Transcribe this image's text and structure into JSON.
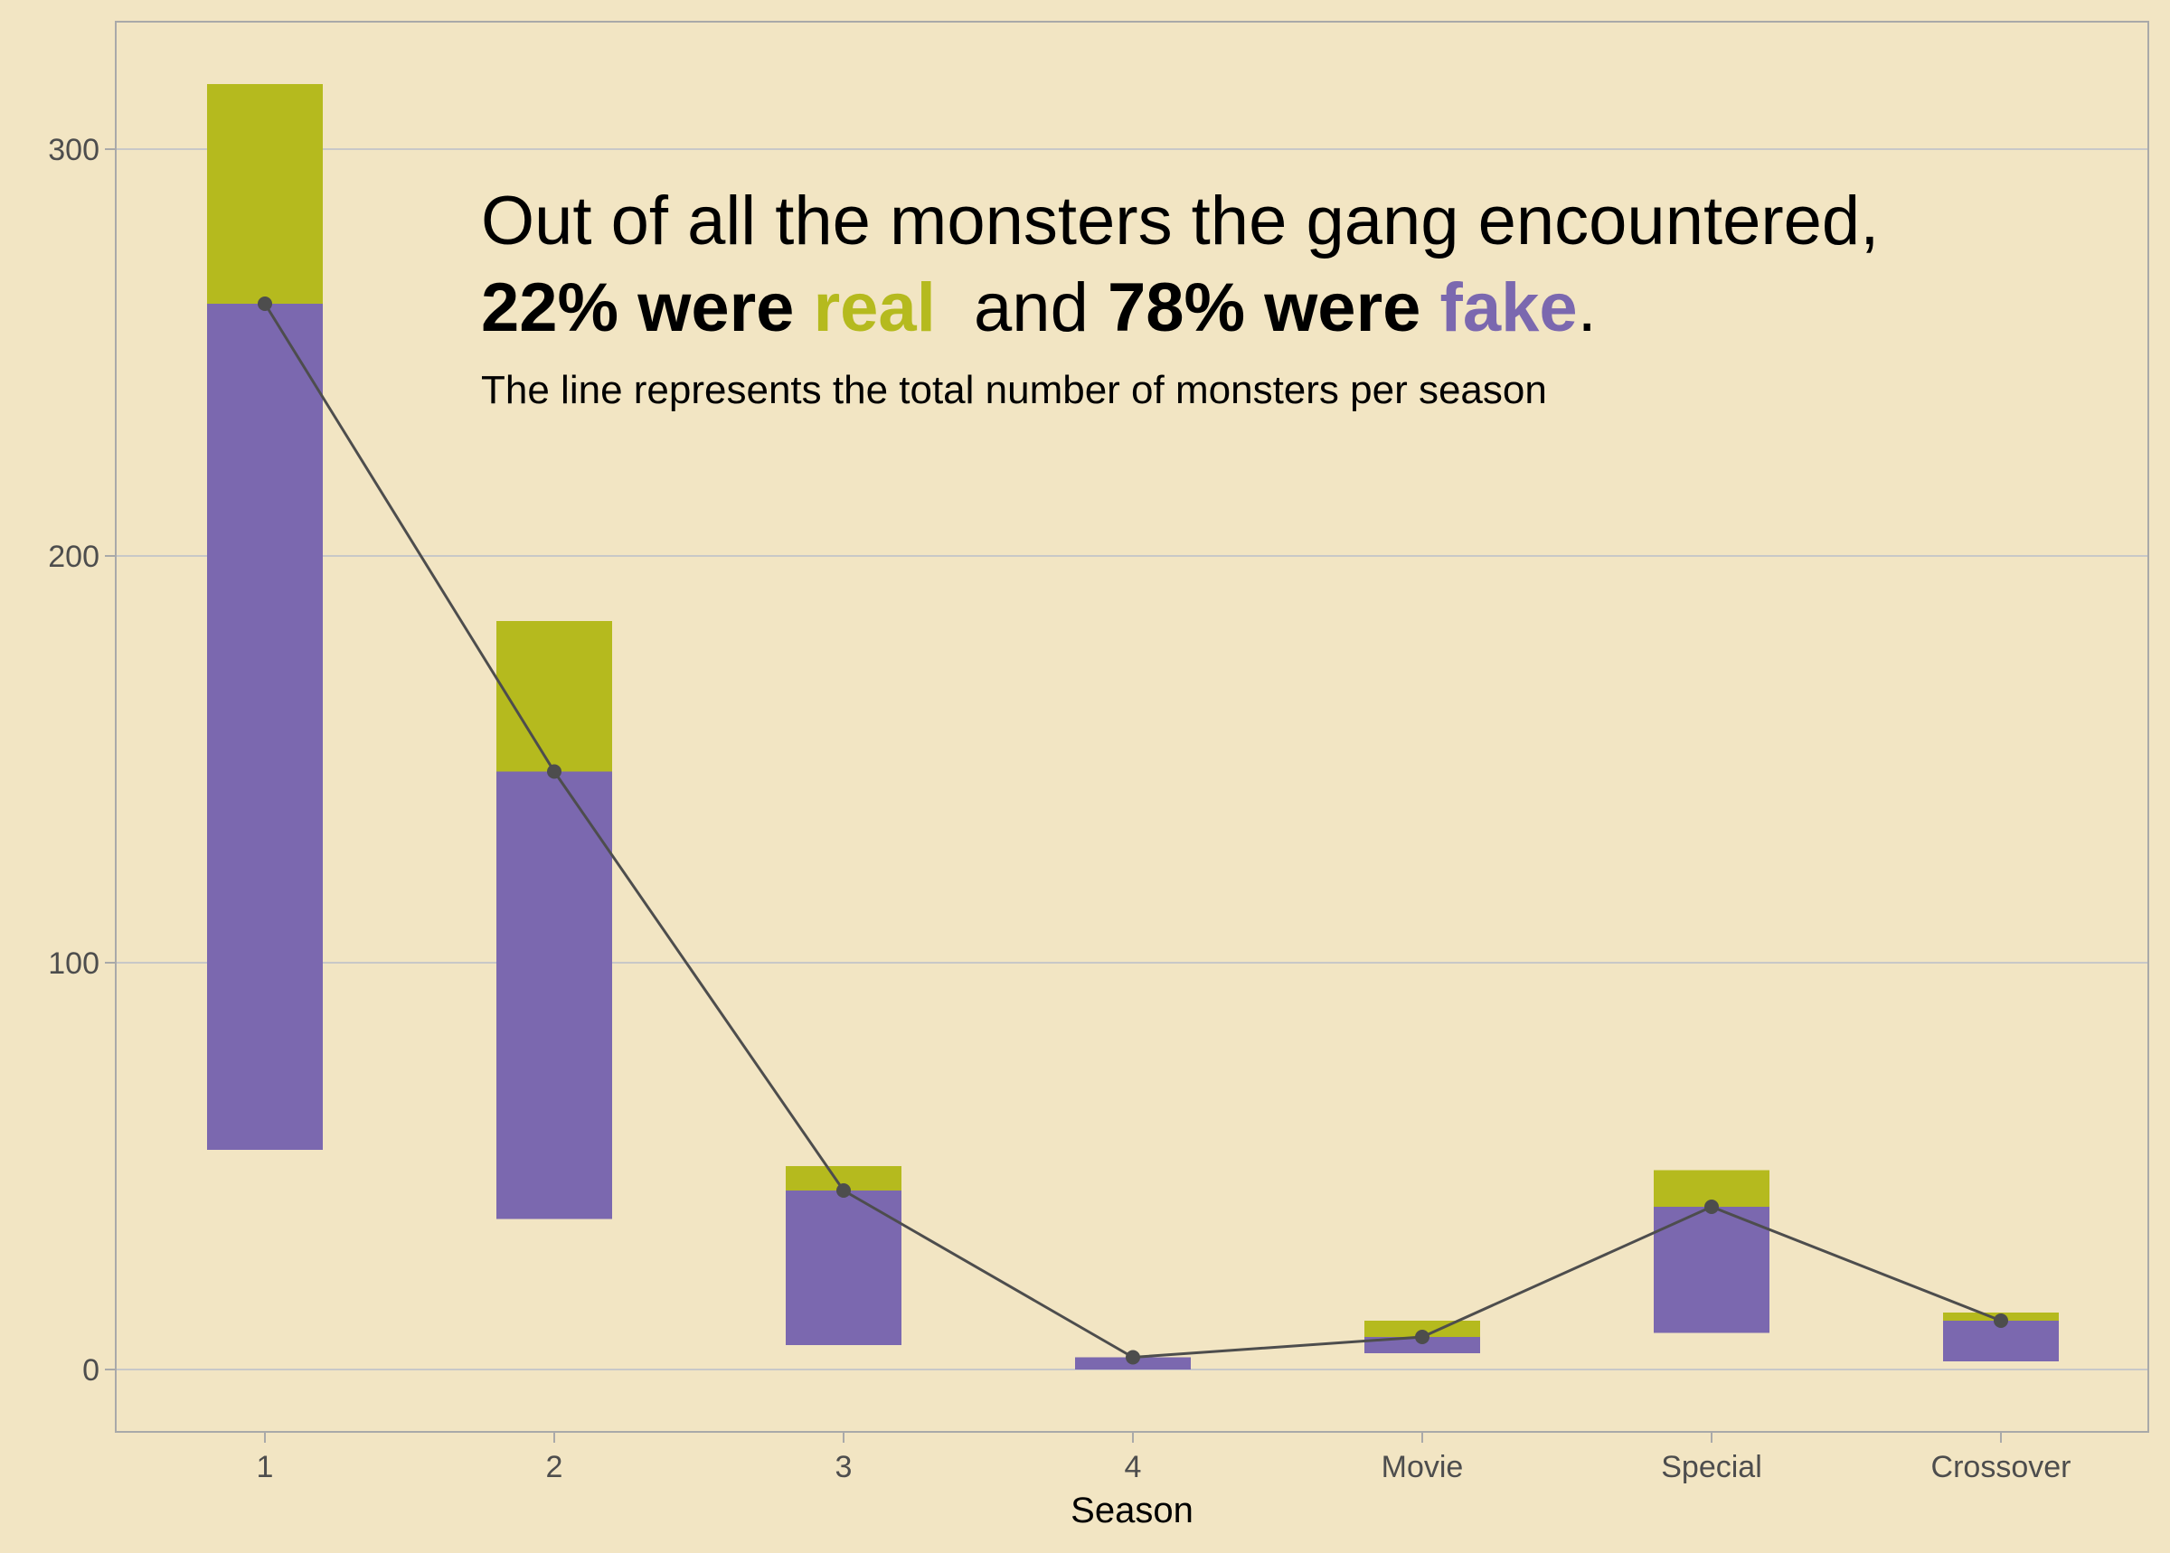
{
  "chart_data": {
    "type": "bar",
    "xlabel": "Season",
    "ylabel": "",
    "ylim": [
      -15,
      330
    ],
    "yticks": [
      0,
      100,
      200,
      300
    ],
    "grid": true,
    "legend": "none",
    "categories": [
      "1",
      "2",
      "3",
      "4",
      "Movie",
      "Special",
      "Crossover"
    ],
    "series": [
      {
        "values": [
          54,
          37,
          6,
          0,
          4,
          9,
          2
        ],
        "role": "offset (invisible)"
      },
      {
        "name": "fake",
        "values": [
          208,
          110,
          38,
          3,
          4,
          31,
          10
        ],
        "color": "#7B68AF"
      },
      {
        "name": "real",
        "values": [
          54,
          37,
          6,
          0,
          4,
          9,
          2
        ],
        "color": "#B5BA1E"
      }
    ],
    "line": {
      "description": "total number of monsters per season",
      "values": [
        262,
        147,
        44,
        3,
        8,
        40,
        12
      ],
      "color": "#4D4D4D"
    },
    "annotation": {
      "line1": "Out of all the monsters the gang encountered,",
      "line2_part1": "22% were ",
      "line2_real": "real",
      "line2_part2": "  and ",
      "line2_part3": "78% were ",
      "line2_fake": "fake",
      "line2_period": ".",
      "subtitle": "The line represents the total number of monsters per season"
    },
    "colors": {
      "background": "#F2E5C3",
      "real": "#B5BA1E",
      "fake": "#7B68AF",
      "grid": "#C8C8C8",
      "border": "#A9A9A9",
      "line": "#4D4D4D"
    }
  }
}
